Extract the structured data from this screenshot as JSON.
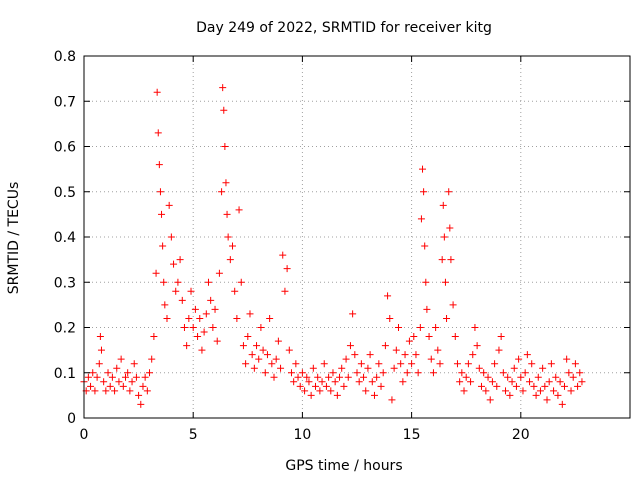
{
  "chart_data": {
    "type": "scatter",
    "title": "Day 249 of 2022, SRMTID for receiver kitg",
    "xlabel": "GPS time / hours",
    "ylabel": "SRMTID / TECUs",
    "xlim": [
      0,
      25
    ],
    "ylim": [
      0,
      0.8
    ],
    "xticks": [
      0,
      5,
      10,
      15,
      20
    ],
    "xtick_labels": [
      "0",
      "5",
      "10",
      "15",
      "20"
    ],
    "yticks": [
      0,
      0.1,
      0.2,
      0.3,
      0.4,
      0.5,
      0.6,
      0.7,
      0.8
    ],
    "ytick_labels": [
      "0",
      "0.1",
      "0.2",
      "0.3",
      "0.4",
      "0.5",
      "0.6",
      "0.7",
      "0.8"
    ],
    "grid": true,
    "marker": "plus",
    "color": "#ff0000",
    "series": [
      {
        "name": "SRMTID",
        "points": [
          [
            0.0,
            0.08
          ],
          [
            0.1,
            0.06
          ],
          [
            0.2,
            0.09
          ],
          [
            0.3,
            0.07
          ],
          [
            0.4,
            0.1
          ],
          [
            0.5,
            0.06
          ],
          [
            0.6,
            0.09
          ],
          [
            0.7,
            0.12
          ],
          [
            0.75,
            0.18
          ],
          [
            0.8,
            0.15
          ],
          [
            0.9,
            0.08
          ],
          [
            1.0,
            0.06
          ],
          [
            1.1,
            0.1
          ],
          [
            1.2,
            0.07
          ],
          [
            1.3,
            0.09
          ],
          [
            1.4,
            0.06
          ],
          [
            1.5,
            0.11
          ],
          [
            1.6,
            0.08
          ],
          [
            1.7,
            0.13
          ],
          [
            1.8,
            0.07
          ],
          [
            1.9,
            0.09
          ],
          [
            2.0,
            0.1
          ],
          [
            2.1,
            0.06
          ],
          [
            2.2,
            0.08
          ],
          [
            2.3,
            0.12
          ],
          [
            2.4,
            0.09
          ],
          [
            2.5,
            0.05
          ],
          [
            2.6,
            0.03
          ],
          [
            2.7,
            0.07
          ],
          [
            2.8,
            0.09
          ],
          [
            2.9,
            0.06
          ],
          [
            3.0,
            0.1
          ],
          [
            3.1,
            0.13
          ],
          [
            3.2,
            0.18
          ],
          [
            3.3,
            0.32
          ],
          [
            3.35,
            0.72
          ],
          [
            3.4,
            0.63
          ],
          [
            3.45,
            0.56
          ],
          [
            3.5,
            0.5
          ],
          [
            3.55,
            0.45
          ],
          [
            3.6,
            0.38
          ],
          [
            3.65,
            0.3
          ],
          [
            3.7,
            0.25
          ],
          [
            3.8,
            0.22
          ],
          [
            3.9,
            0.47
          ],
          [
            4.0,
            0.4
          ],
          [
            4.1,
            0.34
          ],
          [
            4.2,
            0.28
          ],
          [
            4.3,
            0.3
          ],
          [
            4.4,
            0.35
          ],
          [
            4.5,
            0.26
          ],
          [
            4.6,
            0.2
          ],
          [
            4.7,
            0.16
          ],
          [
            4.8,
            0.22
          ],
          [
            4.9,
            0.28
          ],
          [
            5.0,
            0.2
          ],
          [
            5.1,
            0.24
          ],
          [
            5.2,
            0.18
          ],
          [
            5.3,
            0.22
          ],
          [
            5.4,
            0.15
          ],
          [
            5.5,
            0.19
          ],
          [
            5.6,
            0.23
          ],
          [
            5.7,
            0.3
          ],
          [
            5.8,
            0.26
          ],
          [
            5.9,
            0.2
          ],
          [
            6.0,
            0.24
          ],
          [
            6.1,
            0.17
          ],
          [
            6.2,
            0.32
          ],
          [
            6.3,
            0.5
          ],
          [
            6.35,
            0.73
          ],
          [
            6.4,
            0.68
          ],
          [
            6.45,
            0.6
          ],
          [
            6.5,
            0.52
          ],
          [
            6.55,
            0.45
          ],
          [
            6.6,
            0.4
          ],
          [
            6.7,
            0.35
          ],
          [
            6.8,
            0.38
          ],
          [
            6.9,
            0.28
          ],
          [
            7.0,
            0.22
          ],
          [
            7.1,
            0.46
          ],
          [
            7.2,
            0.3
          ],
          [
            7.3,
            0.16
          ],
          [
            7.4,
            0.12
          ],
          [
            7.5,
            0.18
          ],
          [
            7.6,
            0.23
          ],
          [
            7.7,
            0.14
          ],
          [
            7.8,
            0.11
          ],
          [
            7.9,
            0.16
          ],
          [
            8.0,
            0.13
          ],
          [
            8.1,
            0.2
          ],
          [
            8.2,
            0.15
          ],
          [
            8.3,
            0.1
          ],
          [
            8.4,
            0.14
          ],
          [
            8.5,
            0.22
          ],
          [
            8.6,
            0.12
          ],
          [
            8.7,
            0.09
          ],
          [
            8.8,
            0.13
          ],
          [
            8.9,
            0.17
          ],
          [
            9.0,
            0.11
          ],
          [
            9.1,
            0.36
          ],
          [
            9.2,
            0.28
          ],
          [
            9.3,
            0.33
          ],
          [
            9.4,
            0.15
          ],
          [
            9.5,
            0.1
          ],
          [
            9.6,
            0.08
          ],
          [
            9.7,
            0.12
          ],
          [
            9.8,
            0.09
          ],
          [
            9.9,
            0.07
          ],
          [
            10.0,
            0.1
          ],
          [
            10.1,
            0.06
          ],
          [
            10.2,
            0.09
          ],
          [
            10.3,
            0.08
          ],
          [
            10.4,
            0.05
          ],
          [
            10.5,
            0.11
          ],
          [
            10.6,
            0.07
          ],
          [
            10.7,
            0.09
          ],
          [
            10.8,
            0.06
          ],
          [
            10.9,
            0.08
          ],
          [
            11.0,
            0.12
          ],
          [
            11.1,
            0.07
          ],
          [
            11.2,
            0.09
          ],
          [
            11.3,
            0.06
          ],
          [
            11.4,
            0.1
          ],
          [
            11.5,
            0.08
          ],
          [
            11.6,
            0.05
          ],
          [
            11.7,
            0.09
          ],
          [
            11.8,
            0.11
          ],
          [
            11.9,
            0.07
          ],
          [
            12.0,
            0.13
          ],
          [
            12.1,
            0.09
          ],
          [
            12.2,
            0.16
          ],
          [
            12.3,
            0.23
          ],
          [
            12.4,
            0.14
          ],
          [
            12.5,
            0.1
          ],
          [
            12.6,
            0.08
          ],
          [
            12.7,
            0.12
          ],
          [
            12.8,
            0.09
          ],
          [
            12.9,
            0.06
          ],
          [
            13.0,
            0.11
          ],
          [
            13.1,
            0.14
          ],
          [
            13.2,
            0.08
          ],
          [
            13.3,
            0.05
          ],
          [
            13.4,
            0.09
          ],
          [
            13.5,
            0.12
          ],
          [
            13.6,
            0.07
          ],
          [
            13.7,
            0.1
          ],
          [
            13.8,
            0.16
          ],
          [
            13.9,
            0.27
          ],
          [
            14.0,
            0.22
          ],
          [
            14.1,
            0.04
          ],
          [
            14.2,
            0.11
          ],
          [
            14.3,
            0.15
          ],
          [
            14.4,
            0.2
          ],
          [
            14.5,
            0.12
          ],
          [
            14.6,
            0.08
          ],
          [
            14.7,
            0.14
          ],
          [
            14.8,
            0.1
          ],
          [
            14.9,
            0.17
          ],
          [
            15.0,
            0.12
          ],
          [
            15.1,
            0.18
          ],
          [
            15.2,
            0.14
          ],
          [
            15.3,
            0.1
          ],
          [
            15.4,
            0.2
          ],
          [
            15.45,
            0.44
          ],
          [
            15.5,
            0.55
          ],
          [
            15.55,
            0.5
          ],
          [
            15.6,
            0.38
          ],
          [
            15.65,
            0.3
          ],
          [
            15.7,
            0.24
          ],
          [
            15.8,
            0.18
          ],
          [
            15.9,
            0.13
          ],
          [
            16.0,
            0.1
          ],
          [
            16.1,
            0.2
          ],
          [
            16.2,
            0.15
          ],
          [
            16.3,
            0.12
          ],
          [
            16.4,
            0.35
          ],
          [
            16.45,
            0.47
          ],
          [
            16.5,
            0.4
          ],
          [
            16.55,
            0.3
          ],
          [
            16.6,
            0.22
          ],
          [
            16.7,
            0.5
          ],
          [
            16.75,
            0.42
          ],
          [
            16.8,
            0.35
          ],
          [
            16.9,
            0.25
          ],
          [
            17.0,
            0.18
          ],
          [
            17.1,
            0.12
          ],
          [
            17.2,
            0.08
          ],
          [
            17.3,
            0.1
          ],
          [
            17.4,
            0.06
          ],
          [
            17.5,
            0.09
          ],
          [
            17.6,
            0.12
          ],
          [
            17.7,
            0.08
          ],
          [
            17.8,
            0.14
          ],
          [
            17.9,
            0.2
          ],
          [
            18.0,
            0.16
          ],
          [
            18.1,
            0.11
          ],
          [
            18.2,
            0.07
          ],
          [
            18.3,
            0.1
          ],
          [
            18.4,
            0.06
          ],
          [
            18.5,
            0.09
          ],
          [
            18.6,
            0.04
          ],
          [
            18.7,
            0.08
          ],
          [
            18.8,
            0.12
          ],
          [
            18.9,
            0.07
          ],
          [
            19.0,
            0.15
          ],
          [
            19.1,
            0.18
          ],
          [
            19.2,
            0.1
          ],
          [
            19.3,
            0.06
          ],
          [
            19.4,
            0.09
          ],
          [
            19.5,
            0.05
          ],
          [
            19.6,
            0.08
          ],
          [
            19.7,
            0.11
          ],
          [
            19.8,
            0.07
          ],
          [
            19.9,
            0.13
          ],
          [
            20.0,
            0.09
          ],
          [
            20.1,
            0.06
          ],
          [
            20.2,
            0.1
          ],
          [
            20.3,
            0.14
          ],
          [
            20.4,
            0.08
          ],
          [
            20.5,
            0.12
          ],
          [
            20.6,
            0.07
          ],
          [
            20.7,
            0.05
          ],
          [
            20.8,
            0.09
          ],
          [
            20.9,
            0.06
          ],
          [
            21.0,
            0.11
          ],
          [
            21.1,
            0.07
          ],
          [
            21.2,
            0.04
          ],
          [
            21.3,
            0.08
          ],
          [
            21.4,
            0.12
          ],
          [
            21.5,
            0.06
          ],
          [
            21.6,
            0.09
          ],
          [
            21.7,
            0.05
          ],
          [
            21.8,
            0.08
          ],
          [
            21.9,
            0.03
          ],
          [
            22.0,
            0.07
          ],
          [
            22.1,
            0.13
          ],
          [
            22.2,
            0.1
          ],
          [
            22.3,
            0.06
          ],
          [
            22.4,
            0.09
          ],
          [
            22.5,
            0.12
          ],
          [
            22.6,
            0.07
          ],
          [
            22.7,
            0.1
          ],
          [
            22.8,
            0.08
          ]
        ]
      }
    ]
  }
}
